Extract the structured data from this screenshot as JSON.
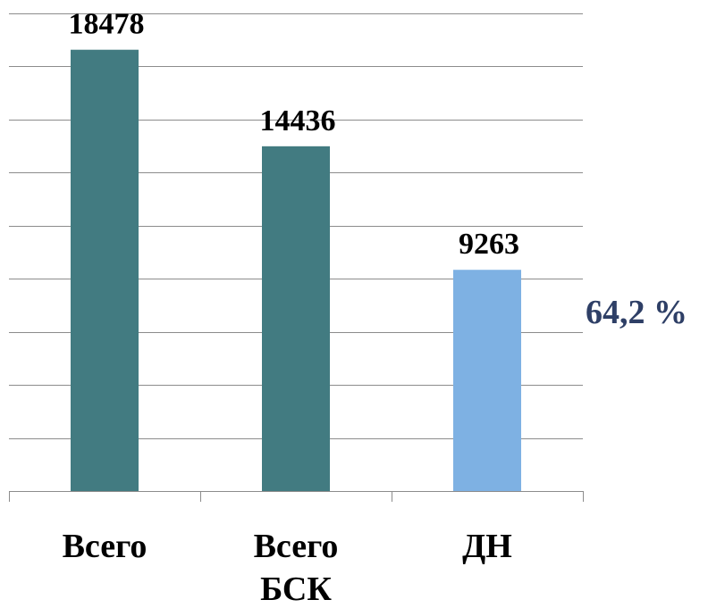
{
  "chart_data": {
    "type": "bar",
    "categories": [
      "Всего",
      "Всего БСК",
      "ДН"
    ],
    "category_lines": [
      [
        "Всего"
      ],
      [
        "Всего",
        "БСК"
      ],
      [
        "ДН"
      ]
    ],
    "values": [
      18478,
      14436,
      9263
    ],
    "value_labels": [
      "18478",
      "14436",
      "9263"
    ],
    "bar_colors": [
      "#427b81",
      "#427b81",
      "#7eb1e3"
    ],
    "annotation": {
      "text": "64,2 %",
      "color": "#2e3f66"
    },
    "ylim": [
      0,
      20000
    ],
    "gridline_step": 2222.2,
    "grid": true,
    "legend": "none",
    "title": "",
    "xlabel": "",
    "ylabel": ""
  }
}
